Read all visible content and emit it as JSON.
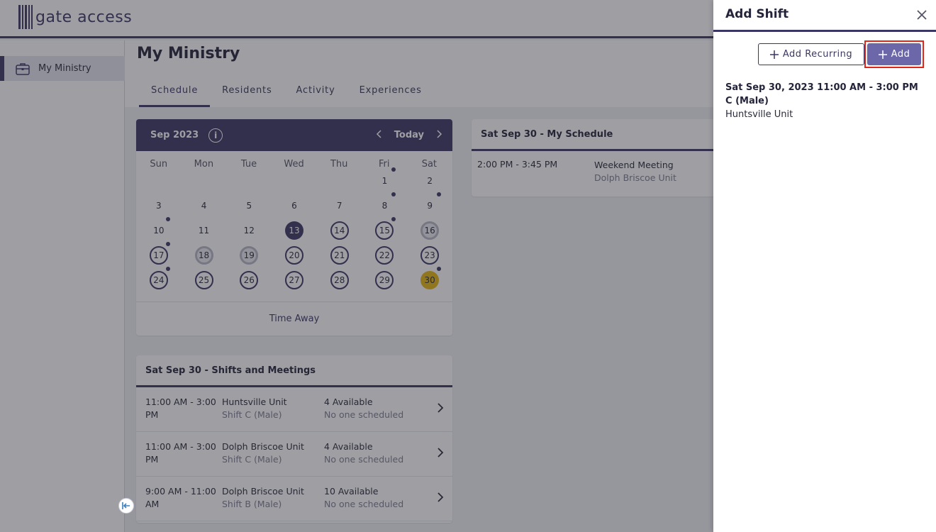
{
  "app": {
    "logo_text": "gate access"
  },
  "sidebar": {
    "items": [
      {
        "label": "My Ministry",
        "icon": "briefcase-icon"
      }
    ]
  },
  "page": {
    "title": "My Ministry",
    "tabs": [
      {
        "label": "Schedule",
        "active": true
      },
      {
        "label": "Residents",
        "active": false
      },
      {
        "label": "Activity",
        "active": false
      },
      {
        "label": "Experiences",
        "active": false
      }
    ]
  },
  "calendar": {
    "month_label": "Sep 2023",
    "today_label": "Today",
    "weekdays": [
      "Sun",
      "Mon",
      "Tue",
      "Wed",
      "Thu",
      "Fri",
      "Sat"
    ],
    "weeks": [
      [
        null,
        null,
        null,
        null,
        null,
        1,
        2
      ],
      [
        3,
        4,
        5,
        6,
        7,
        8,
        9
      ],
      [
        10,
        11,
        12,
        13,
        14,
        15,
        16
      ],
      [
        17,
        18,
        19,
        20,
        21,
        22,
        23
      ],
      [
        24,
        25,
        26,
        27,
        28,
        29,
        30
      ]
    ],
    "today_day": 13,
    "selected_day": 30,
    "ringed_days": [
      14,
      15,
      17,
      20,
      21,
      22,
      23,
      24,
      25,
      26,
      27,
      28,
      29
    ],
    "grey_ringed_days": [
      16,
      18,
      19
    ],
    "dotted_days": [
      1,
      8,
      9,
      10,
      15,
      17,
      24,
      30
    ],
    "footer_label": "Time Away"
  },
  "shifts": {
    "title": "Sat Sep 30 - Shifts and Meetings",
    "rows": [
      {
        "time": "11:00 AM - 3:00 PM",
        "unit": "Huntsville Unit",
        "shift": "Shift C (Male)",
        "available": "4 Available",
        "scheduled": "No one scheduled"
      },
      {
        "time": "11:00 AM - 3:00 PM",
        "unit": "Dolph Briscoe Unit",
        "shift": "Shift C (Male)",
        "available": "4 Available",
        "scheduled": "No one scheduled"
      },
      {
        "time": "9:00 AM - 11:00 AM",
        "unit": "Dolph Briscoe Unit",
        "shift": "Shift B (Male)",
        "available": "10 Available",
        "scheduled": "No one scheduled"
      }
    ]
  },
  "my_schedule": {
    "title": "Sat Sep 30 - My Schedule",
    "items": [
      {
        "time": "2:00 PM - 3:45 PM",
        "title": "Weekend Meeting",
        "location": "Dolph Briscoe Unit"
      }
    ]
  },
  "panel": {
    "title": "Add Shift",
    "add_recurring_label": "Add Recurring",
    "add_label": "Add",
    "shift_datetime": "Sat Sep 30, 2023 11:00 AM - 3:00 PM",
    "shift_name": "C (Male)",
    "shift_unit": "Huntsville Unit"
  },
  "colors": {
    "brand": "#3b3763",
    "add_button": "#6b67a8",
    "selected_day": "#e5b60d",
    "highlight_border": "#e0261b"
  }
}
